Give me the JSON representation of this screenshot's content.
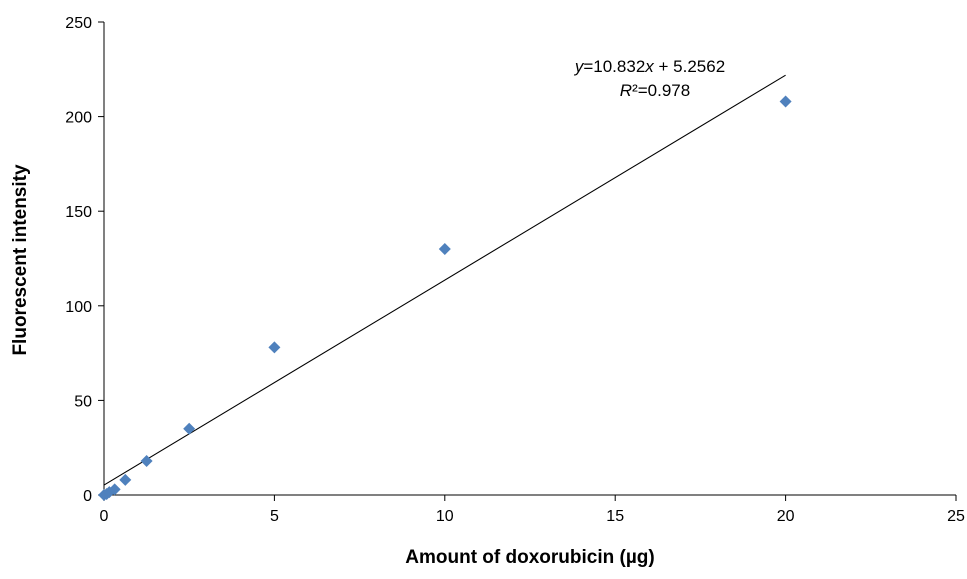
{
  "chart_data": {
    "type": "scatter",
    "title": "",
    "xlabel": "Amount of doxorubicin (µg)",
    "ylabel": "Fluorescent intensity",
    "xlim": [
      0,
      25
    ],
    "ylim": [
      0,
      250
    ],
    "x_ticks": [
      0,
      5,
      10,
      15,
      20,
      25
    ],
    "y_ticks": [
      0,
      50,
      100,
      150,
      200,
      250
    ],
    "grid": false,
    "legend": "none",
    "series": [
      {
        "marker": "diamond",
        "color": "#4f81bd",
        "x": [
          0,
          0.078,
          0.156,
          0.3125,
          0.625,
          1.25,
          2.5,
          5,
          10,
          20
        ],
        "y": [
          0,
          0.5,
          1.5,
          3,
          8,
          18,
          35,
          78,
          130,
          208
        ]
      }
    ],
    "trendline": {
      "type": "linear",
      "slope": 10.832,
      "intercept": 5.2562,
      "x_range": [
        0,
        20
      ],
      "color": "#000000"
    },
    "annotations": {
      "equation_prefix": "y",
      "equation_mid": "=10.832",
      "equation_var": "x",
      "equation_suffix": " + 5.2562",
      "r2_symbol": "R",
      "r2_value": "²=0.978"
    }
  }
}
